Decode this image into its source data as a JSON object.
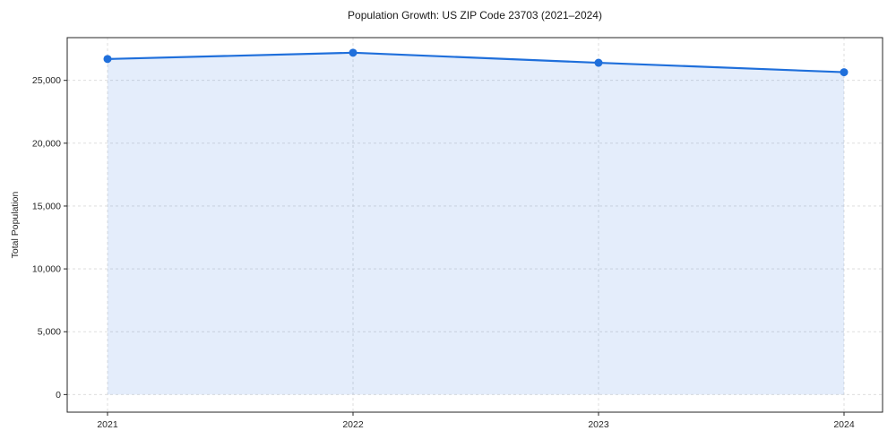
{
  "chart_data": {
    "type": "line",
    "title": "Population Growth: US ZIP Code 23703 (2021–2024)",
    "xlabel": "",
    "ylabel": "Total Population",
    "categories": [
      "2021",
      "2022",
      "2023",
      "2024"
    ],
    "series": [
      {
        "name": "Total Population",
        "values": [
          26700,
          27200,
          26400,
          25650
        ]
      }
    ],
    "ylim": [
      -1400,
      28400
    ],
    "yticks": [
      0,
      5000,
      10000,
      15000,
      20000,
      25000
    ],
    "ytick_labels": [
      "0",
      "5,000",
      "10,000",
      "15,000",
      "20,000",
      "25,000"
    ],
    "grid": true,
    "grid_style": "dashed",
    "legend": "none",
    "area_fill": true,
    "style": {
      "line_color": "#1f6fdb",
      "marker_color": "#1f6fdb",
      "fill_color": "#1f6fdb",
      "fill_opacity": 0.12,
      "grid_color": "#d9d9d9",
      "axis_color": "#262626",
      "text_color": "#262626"
    }
  }
}
